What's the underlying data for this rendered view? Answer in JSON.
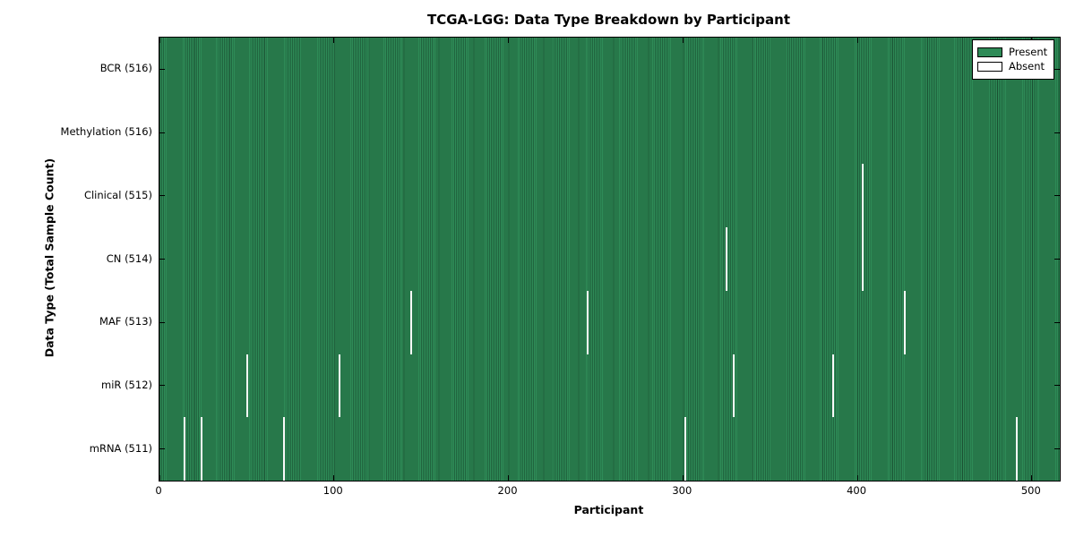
{
  "title": "TCGA-LGG: Data Type Breakdown by Participant",
  "xlabel": "Participant",
  "ylabel": "Data Type (Total Sample Count)",
  "legend": {
    "items": [
      {
        "label": "Present",
        "color": "#2e8b57"
      },
      {
        "label": "Absent",
        "color": "#ffffff"
      }
    ]
  },
  "chart_data": {
    "type": "heatmap",
    "title": "TCGA-LGG: Data Type Breakdown by Participant",
    "xlabel": "Participant",
    "ylabel": "Data Type (Total Sample Count)",
    "total_participants": 516,
    "x_range": [
      0,
      516
    ],
    "x_tick_values": [
      0,
      100,
      200,
      300,
      400,
      500
    ],
    "legend_position": "upper right",
    "grid": false,
    "colors": {
      "present": "#2e8b57",
      "absent": "#fafafa",
      "cell_edge": "#1c5434",
      "row_divider": "#0a1f12",
      "spine": "#000000"
    },
    "rows": [
      {
        "data_type": "BCR",
        "label": "BCR (516)",
        "present_count": 516,
        "absent_participants": []
      },
      {
        "data_type": "Methylation",
        "label": "Methylation (516)",
        "present_count": 516,
        "absent_participants": []
      },
      {
        "data_type": "Clinical",
        "label": "Clinical (515)",
        "present_count": 515,
        "absent_participants": [
          403
        ]
      },
      {
        "data_type": "CN",
        "label": "CN (514)",
        "present_count": 514,
        "absent_participants": [
          325,
          403
        ]
      },
      {
        "data_type": "MAF",
        "label": "MAF (513)",
        "present_count": 513,
        "absent_participants": [
          144,
          245,
          427
        ]
      },
      {
        "data_type": "miR",
        "label": "miR (512)",
        "present_count": 512,
        "absent_participants": [
          50,
          103,
          329,
          386
        ]
      },
      {
        "data_type": "mRNA",
        "label": "mRNA (511)",
        "present_count": 511,
        "absent_participants": [
          14,
          24,
          71,
          301,
          491
        ]
      }
    ]
  }
}
